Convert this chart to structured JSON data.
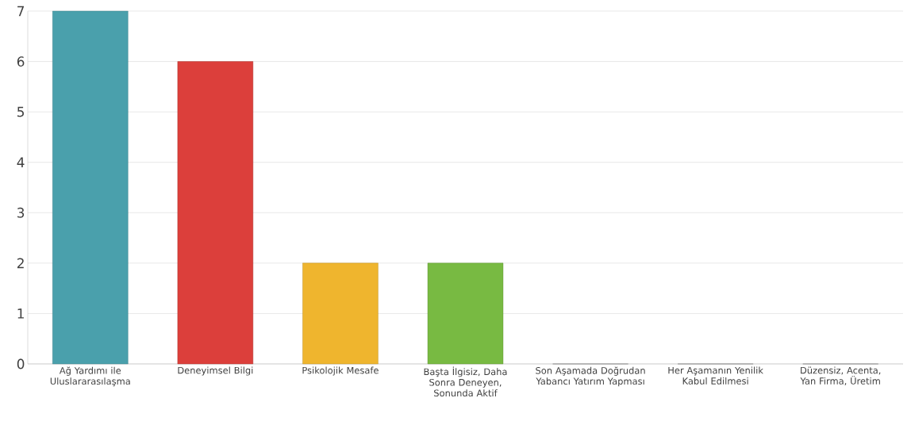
{
  "chart_data": {
    "type": "bar",
    "categories": [
      "Ağ Yardımı ile Uluslararasılaşma",
      "Deneyimsel Bilgi",
      "Psikolojik Mesafe",
      "Başta İlgisiz, Daha Sonra Deneyen, Sonunda Aktif",
      "Son Aşamada Doğrudan Yabancı Yatırım Yapması",
      "Her Aşamanın Yenilik Kabul Edilmesi",
      "Düzensiz, Acenta, Yan Firma, Üretim"
    ],
    "values": [
      7,
      6,
      2,
      2,
      0,
      0,
      0
    ],
    "colors": [
      "#4aa0ac",
      "#dc3f3b",
      "#efb52e",
      "#78ba42",
      "#888888",
      "#888888",
      "#888888"
    ],
    "ylim": [
      0,
      7
    ],
    "yticks": [
      0,
      1,
      2,
      3,
      4,
      5,
      6,
      7
    ],
    "grid": "y"
  }
}
